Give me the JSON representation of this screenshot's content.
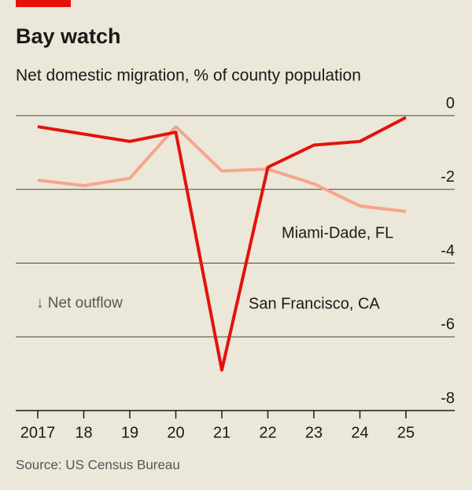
{
  "chart_data": {
    "type": "line",
    "title": "Bay watch",
    "subtitle": "Net domestic migration, % of county population",
    "source": "Source: US Census Bureau",
    "annotation": "↓ Net outflow",
    "categories": [
      "2017",
      "18",
      "19",
      "20",
      "21",
      "22",
      "23",
      "24",
      "25"
    ],
    "series": [
      {
        "name": "San Francisco, CA",
        "color": "#e3120b",
        "values": [
          -0.3,
          -0.5,
          -0.7,
          -0.45,
          -6.9,
          -1.4,
          -0.8,
          -0.7,
          -0.05
        ]
      },
      {
        "name": "Miami-Dade, FL",
        "color": "#f6a58c",
        "values": [
          -1.75,
          -1.9,
          -1.7,
          -0.3,
          -1.5,
          -1.45,
          -1.85,
          -2.45,
          -2.6
        ]
      }
    ],
    "ylim": [
      -8,
      0
    ],
    "yticks": [
      0,
      -2,
      -4,
      -6,
      -8
    ],
    "grid": true
  }
}
